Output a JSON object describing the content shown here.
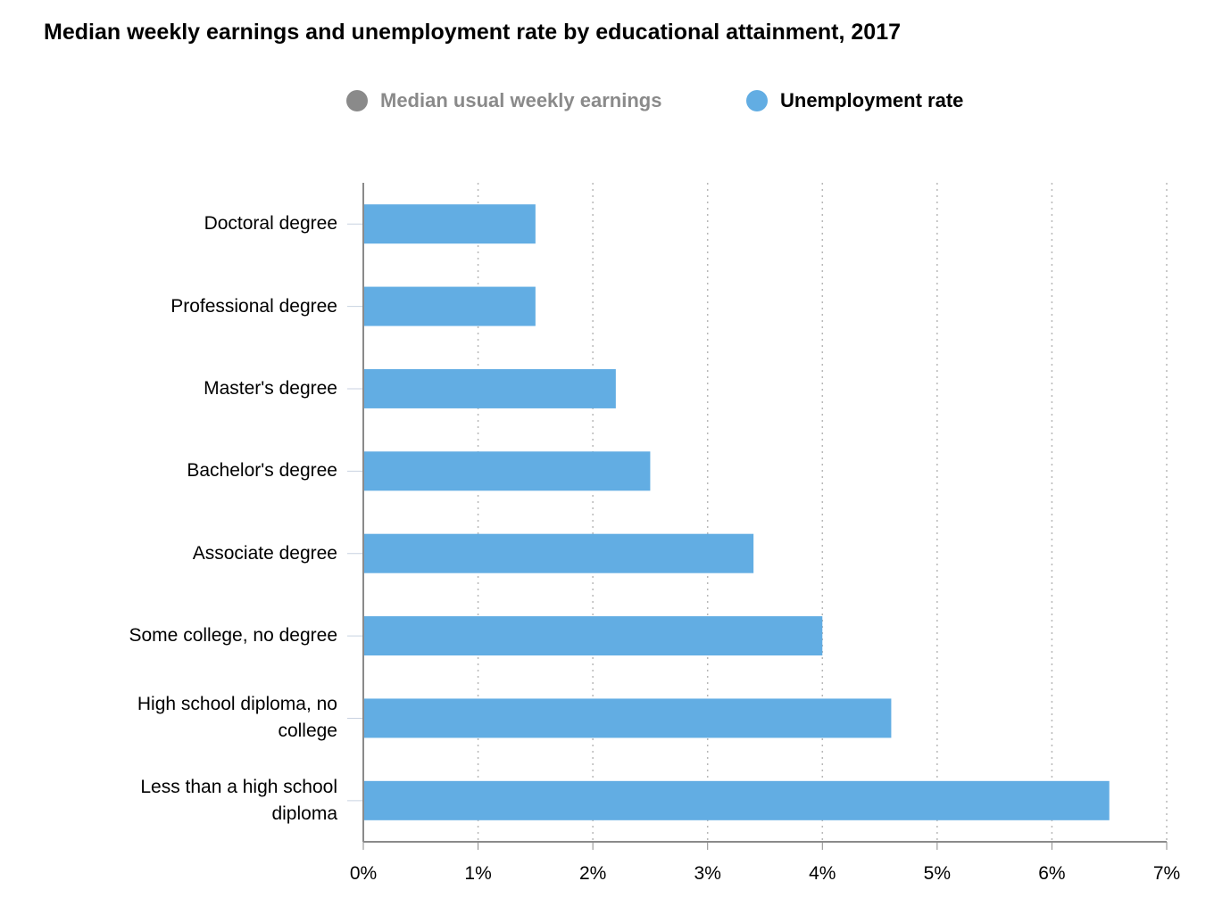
{
  "chart_data": {
    "type": "bar",
    "orientation": "horizontal",
    "title": "Median weekly earnings and unemployment rate by educational attainment, 2017",
    "legend": [
      {
        "label": "Median usual weekly earnings",
        "color": "#8a8a8a",
        "active": false
      },
      {
        "label": "Unemployment rate",
        "color": "#62ade3",
        "active": true
      }
    ],
    "categories": [
      "Doctoral degree",
      "Professional degree",
      "Master's degree",
      "Bachelor's degree",
      "Associate degree",
      "Some college, no degree",
      "High school diploma, no college",
      "Less than a high school diploma"
    ],
    "series": [
      {
        "name": "Unemployment rate",
        "color": "#62ade3",
        "values": [
          1.5,
          1.5,
          2.2,
          2.5,
          3.4,
          4.0,
          4.6,
          6.5
        ]
      }
    ],
    "xlim": [
      0,
      7
    ],
    "x_ticks": [
      "0%",
      "1%",
      "2%",
      "3%",
      "4%",
      "5%",
      "6%",
      "7%"
    ],
    "grid": "vertical-dotted",
    "legend_position": "top-center"
  }
}
